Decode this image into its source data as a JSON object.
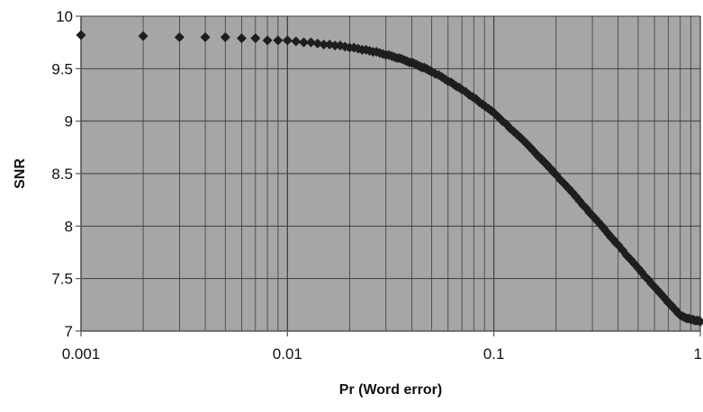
{
  "chart_data": {
    "type": "scatter",
    "title": "",
    "xlabel": "Pr (Word error)",
    "ylabel": "SNR",
    "x_scale": "log",
    "xlim": [
      0.001,
      1
    ],
    "ylim": [
      7,
      10
    ],
    "x_ticks": [
      {
        "value": 0.001,
        "label": "0.001"
      },
      {
        "value": 0.01,
        "label": "0.01"
      },
      {
        "value": 0.1,
        "label": "0.1"
      },
      {
        "value": 1,
        "label": "1"
      }
    ],
    "y_ticks": [
      {
        "value": 7,
        "label": "7"
      },
      {
        "value": 7.5,
        "label": "7.5"
      },
      {
        "value": 8,
        "label": "8"
      },
      {
        "value": 8.5,
        "label": "8.5"
      },
      {
        "value": 9,
        "label": "9"
      },
      {
        "value": 9.5,
        "label": "9.5"
      },
      {
        "value": 10,
        "label": "10"
      }
    ],
    "grid": true,
    "legend": "none",
    "colors": {
      "plot_background": "#a6a6a6",
      "gridline": "#3c3c3c",
      "marker": "#1e1e1e",
      "axis": "#555555"
    },
    "series": [
      {
        "marker": "diamond",
        "points": [
          [
            0.001,
            9.82
          ],
          [
            0.002,
            9.81
          ],
          [
            0.003,
            9.8
          ],
          [
            0.004,
            9.8
          ],
          [
            0.005,
            9.8
          ],
          [
            0.006,
            9.79
          ],
          [
            0.007,
            9.79
          ],
          [
            0.008,
            9.77
          ],
          [
            0.009,
            9.77
          ],
          [
            0.01,
            9.77
          ],
          [
            0.011,
            9.76
          ],
          [
            0.012,
            9.75
          ],
          [
            0.013,
            9.75
          ],
          [
            0.014,
            9.74
          ],
          [
            0.015,
            9.73
          ],
          [
            0.016,
            9.73
          ],
          [
            0.017,
            9.72
          ],
          [
            0.018,
            9.72
          ],
          [
            0.019,
            9.71
          ],
          [
            0.02,
            9.7
          ],
          [
            0.021,
            9.7
          ],
          [
            0.022,
            9.69
          ],
          [
            0.023,
            9.68
          ],
          [
            0.024,
            9.68
          ],
          [
            0.025,
            9.67
          ],
          [
            0.026,
            9.66
          ],
          [
            0.027,
            9.66
          ],
          [
            0.028,
            9.65
          ],
          [
            0.029,
            9.64
          ],
          [
            0.03,
            9.63
          ],
          [
            0.031,
            9.63
          ],
          [
            0.032,
            9.62
          ],
          [
            0.033,
            9.61
          ],
          [
            0.034,
            9.6
          ],
          [
            0.035,
            9.6
          ],
          [
            0.036,
            9.59
          ],
          [
            0.037,
            9.58
          ],
          [
            0.038,
            9.57
          ],
          [
            0.039,
            9.56
          ],
          [
            0.04,
            9.56
          ],
          [
            0.041,
            9.55
          ],
          [
            0.042,
            9.54
          ],
          [
            0.043,
            9.53
          ],
          [
            0.044,
            9.52
          ],
          [
            0.045,
            9.51
          ],
          [
            0.046,
            9.51
          ],
          [
            0.047,
            9.5
          ],
          [
            0.048,
            9.49
          ],
          [
            0.049,
            9.48
          ],
          [
            0.05,
            9.47
          ],
          [
            0.052,
            9.45
          ],
          [
            0.054,
            9.44
          ],
          [
            0.056,
            9.42
          ],
          [
            0.058,
            9.4
          ],
          [
            0.06,
            9.38
          ],
          [
            0.062,
            9.37
          ],
          [
            0.064,
            9.35
          ],
          [
            0.066,
            9.33
          ],
          [
            0.068,
            9.32
          ],
          [
            0.07,
            9.3
          ],
          [
            0.073,
            9.28
          ],
          [
            0.076,
            9.25
          ],
          [
            0.079,
            9.23
          ],
          [
            0.082,
            9.21
          ],
          [
            0.085,
            9.18
          ],
          [
            0.088,
            9.16
          ],
          [
            0.091,
            9.14
          ],
          [
            0.094,
            9.12
          ],
          [
            0.097,
            9.1
          ],
          [
            0.1,
            9.08
          ],
          [
            0.105,
            9.04
          ],
          [
            0.11,
            9.0
          ],
          [
            0.115,
            8.97
          ],
          [
            0.12,
            8.93
          ],
          [
            0.125,
            8.9
          ],
          [
            0.13,
            8.87
          ],
          [
            0.135,
            8.84
          ],
          [
            0.14,
            8.81
          ],
          [
            0.145,
            8.78
          ],
          [
            0.15,
            8.75
          ],
          [
            0.155,
            8.72
          ],
          [
            0.16,
            8.69
          ],
          [
            0.165,
            8.66
          ],
          [
            0.17,
            8.64
          ],
          [
            0.175,
            8.61
          ],
          [
            0.18,
            8.59
          ],
          [
            0.185,
            8.56
          ],
          [
            0.19,
            8.54
          ],
          [
            0.195,
            8.51
          ],
          [
            0.2,
            8.49
          ],
          [
            0.21,
            8.44
          ],
          [
            0.22,
            8.4
          ],
          [
            0.23,
            8.36
          ],
          [
            0.24,
            8.32
          ],
          [
            0.25,
            8.28
          ],
          [
            0.26,
            8.24
          ],
          [
            0.27,
            8.2
          ],
          [
            0.28,
            8.17
          ],
          [
            0.29,
            8.13
          ],
          [
            0.3,
            8.1
          ],
          [
            0.31,
            8.07
          ],
          [
            0.32,
            8.04
          ],
          [
            0.33,
            8.01
          ],
          [
            0.34,
            7.98
          ],
          [
            0.35,
            7.95
          ],
          [
            0.36,
            7.92
          ],
          [
            0.37,
            7.89
          ],
          [
            0.38,
            7.87
          ],
          [
            0.39,
            7.84
          ],
          [
            0.4,
            7.82
          ],
          [
            0.42,
            7.77
          ],
          [
            0.44,
            7.72
          ],
          [
            0.46,
            7.68
          ],
          [
            0.48,
            7.64
          ],
          [
            0.5,
            7.6
          ],
          [
            0.52,
            7.56
          ],
          [
            0.54,
            7.52
          ],
          [
            0.56,
            7.49
          ],
          [
            0.58,
            7.45
          ],
          [
            0.6,
            7.42
          ],
          [
            0.62,
            7.39
          ],
          [
            0.64,
            7.36
          ],
          [
            0.66,
            7.33
          ],
          [
            0.68,
            7.3
          ],
          [
            0.7,
            7.27
          ],
          [
            0.72,
            7.25
          ],
          [
            0.74,
            7.22
          ],
          [
            0.76,
            7.2
          ],
          [
            0.78,
            7.17
          ],
          [
            0.8,
            7.15
          ],
          [
            0.82,
            7.14
          ],
          [
            0.84,
            7.13
          ],
          [
            0.86,
            7.12
          ],
          [
            0.88,
            7.12
          ],
          [
            0.9,
            7.11
          ],
          [
            0.92,
            7.11
          ],
          [
            0.94,
            7.1
          ],
          [
            0.96,
            7.1
          ],
          [
            0.98,
            7.1
          ],
          [
            1,
            7.09
          ]
        ]
      }
    ]
  }
}
